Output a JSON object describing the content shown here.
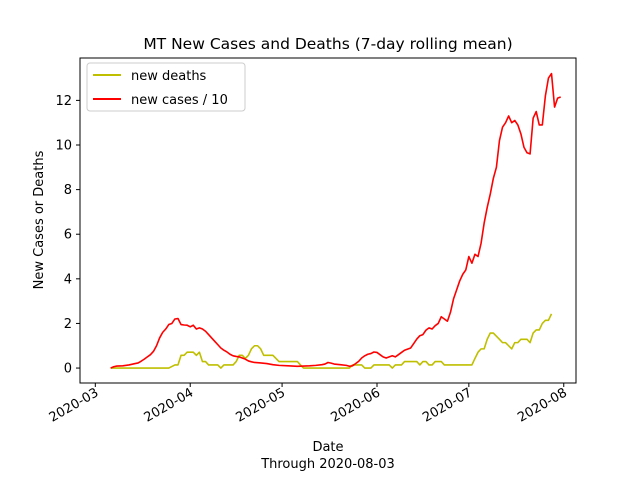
{
  "chart_data": {
    "type": "line",
    "title": "MT New Cases and Deaths (7-day rolling mean)",
    "xlabel": "Date",
    "xlabel_sub": "Through 2020-08-03",
    "ylabel": "New Cases or Deaths",
    "xlim": [
      "2020-02-25",
      "2020-08-05"
    ],
    "ylim": [
      -0.67,
      13.9
    ],
    "x_ticks": [
      "2020-03-01",
      "2020-04-01",
      "2020-05-01",
      "2020-06-01",
      "2020-07-01",
      "2020-08-01"
    ],
    "x_tick_labels": [
      "2020-03",
      "2020-04",
      "2020-05",
      "2020-06",
      "2020-07",
      "2020-08"
    ],
    "y_ticks": [
      0,
      2,
      4,
      6,
      8,
      10,
      12
    ],
    "y_tick_labels": [
      "0",
      "2",
      "4",
      "6",
      "8",
      "10",
      "12"
    ],
    "legend_position": "upper-left",
    "grid": false,
    "series": [
      {
        "name": "new deaths",
        "color": "#bfbf00",
        "points": [
          [
            "2020-03-06",
            0
          ],
          [
            "2020-03-25",
            0
          ],
          [
            "2020-03-27",
            0.14
          ],
          [
            "2020-03-28",
            0.14
          ],
          [
            "2020-03-29",
            0.57
          ],
          [
            "2020-03-30",
            0.57
          ],
          [
            "2020-03-31",
            0.71
          ],
          [
            "2020-04-01",
            0.71
          ],
          [
            "2020-04-02",
            0.71
          ],
          [
            "2020-04-03",
            0.57
          ],
          [
            "2020-04-04",
            0.71
          ],
          [
            "2020-04-05",
            0.29
          ],
          [
            "2020-04-06",
            0.29
          ],
          [
            "2020-04-07",
            0.14
          ],
          [
            "2020-04-09",
            0.14
          ],
          [
            "2020-04-10",
            0.14
          ],
          [
            "2020-04-11",
            0
          ],
          [
            "2020-04-12",
            0.14
          ],
          [
            "2020-04-14",
            0.14
          ],
          [
            "2020-04-15",
            0.14
          ],
          [
            "2020-04-16",
            0.29
          ],
          [
            "2020-04-17",
            0.57
          ],
          [
            "2020-04-18",
            0.57
          ],
          [
            "2020-04-19",
            0.43
          ],
          [
            "2020-04-20",
            0.57
          ],
          [
            "2020-04-21",
            0.86
          ],
          [
            "2020-04-22",
            1.0
          ],
          [
            "2020-04-23",
            1.0
          ],
          [
            "2020-04-24",
            0.86
          ],
          [
            "2020-04-25",
            0.57
          ],
          [
            "2020-04-28",
            0.57
          ],
          [
            "2020-04-30",
            0.29
          ],
          [
            "2020-05-06",
            0.29
          ],
          [
            "2020-05-07",
            0.14
          ],
          [
            "2020-05-08",
            0
          ],
          [
            "2020-05-23",
            0
          ],
          [
            "2020-05-24",
            0.14
          ],
          [
            "2020-05-27",
            0.14
          ],
          [
            "2020-05-28",
            0
          ],
          [
            "2020-05-30",
            0
          ],
          [
            "2020-05-31",
            0.14
          ],
          [
            "2020-06-05",
            0.14
          ],
          [
            "2020-06-06",
            0
          ],
          [
            "2020-06-07",
            0.14
          ],
          [
            "2020-06-09",
            0.14
          ],
          [
            "2020-06-10",
            0.29
          ],
          [
            "2020-06-14",
            0.29
          ],
          [
            "2020-06-15",
            0.14
          ],
          [
            "2020-06-16",
            0.29
          ],
          [
            "2020-06-17",
            0.29
          ],
          [
            "2020-06-18",
            0.14
          ],
          [
            "2020-06-19",
            0.14
          ],
          [
            "2020-06-20",
            0.29
          ],
          [
            "2020-06-22",
            0.29
          ],
          [
            "2020-06-23",
            0.14
          ],
          [
            "2020-07-02",
            0.14
          ],
          [
            "2020-07-03",
            0.43
          ],
          [
            "2020-07-04",
            0.71
          ],
          [
            "2020-07-05",
            0.86
          ],
          [
            "2020-07-06",
            0.86
          ],
          [
            "2020-07-07",
            1.29
          ],
          [
            "2020-07-08",
            1.57
          ],
          [
            "2020-07-09",
            1.57
          ],
          [
            "2020-07-10",
            1.43
          ],
          [
            "2020-07-11",
            1.29
          ],
          [
            "2020-07-12",
            1.14
          ],
          [
            "2020-07-13",
            1.14
          ],
          [
            "2020-07-14",
            1.0
          ],
          [
            "2020-07-15",
            0.86
          ],
          [
            "2020-07-16",
            1.14
          ],
          [
            "2020-07-17",
            1.14
          ],
          [
            "2020-07-18",
            1.29
          ],
          [
            "2020-07-20",
            1.29
          ],
          [
            "2020-07-21",
            1.14
          ],
          [
            "2020-07-22",
            1.57
          ],
          [
            "2020-07-23",
            1.71
          ],
          [
            "2020-07-24",
            1.71
          ],
          [
            "2020-07-25",
            2.0
          ],
          [
            "2020-07-26",
            2.14
          ],
          [
            "2020-07-27",
            2.14
          ],
          [
            "2020-07-28",
            2.43
          ]
        ]
      },
      {
        "name": "new cases / 10",
        "color": "#ff0000",
        "points": [
          [
            "2020-03-06",
            0
          ],
          [
            "2020-03-07",
            0.06
          ],
          [
            "2020-03-08",
            0.09
          ],
          [
            "2020-03-10",
            0.1
          ],
          [
            "2020-03-12",
            0.14
          ],
          [
            "2020-03-14",
            0.2
          ],
          [
            "2020-03-15",
            0.23
          ],
          [
            "2020-03-16",
            0.31
          ],
          [
            "2020-03-17",
            0.4
          ],
          [
            "2020-03-18",
            0.5
          ],
          [
            "2020-03-19",
            0.6
          ],
          [
            "2020-03-20",
            0.75
          ],
          [
            "2020-03-21",
            1.0
          ],
          [
            "2020-03-22",
            1.35
          ],
          [
            "2020-03-23",
            1.6
          ],
          [
            "2020-03-24",
            1.75
          ],
          [
            "2020-03-25",
            1.95
          ],
          [
            "2020-03-26",
            2.0
          ],
          [
            "2020-03-27",
            2.2
          ],
          [
            "2020-03-28",
            2.22
          ],
          [
            "2020-03-29",
            1.95
          ],
          [
            "2020-03-30",
            1.93
          ],
          [
            "2020-03-31",
            1.92
          ],
          [
            "2020-04-01",
            1.85
          ],
          [
            "2020-04-02",
            1.92
          ],
          [
            "2020-04-03",
            1.75
          ],
          [
            "2020-04-04",
            1.8
          ],
          [
            "2020-04-05",
            1.75
          ],
          [
            "2020-04-06",
            1.65
          ],
          [
            "2020-04-07",
            1.5
          ],
          [
            "2020-04-08",
            1.35
          ],
          [
            "2020-04-09",
            1.2
          ],
          [
            "2020-04-10",
            1.05
          ],
          [
            "2020-04-11",
            0.9
          ],
          [
            "2020-04-12",
            0.8
          ],
          [
            "2020-04-13",
            0.72
          ],
          [
            "2020-04-14",
            0.62
          ],
          [
            "2020-04-15",
            0.55
          ],
          [
            "2020-04-16",
            0.52
          ],
          [
            "2020-04-17",
            0.5
          ],
          [
            "2020-04-18",
            0.45
          ],
          [
            "2020-04-19",
            0.4
          ],
          [
            "2020-04-20",
            0.32
          ],
          [
            "2020-04-21",
            0.28
          ],
          [
            "2020-04-22",
            0.25
          ],
          [
            "2020-04-24",
            0.23
          ],
          [
            "2020-04-26",
            0.2
          ],
          [
            "2020-04-28",
            0.15
          ],
          [
            "2020-04-30",
            0.12
          ],
          [
            "2020-05-03",
            0.1
          ],
          [
            "2020-05-06",
            0.08
          ],
          [
            "2020-05-10",
            0.1
          ],
          [
            "2020-05-12",
            0.12
          ],
          [
            "2020-05-14",
            0.15
          ],
          [
            "2020-05-15",
            0.18
          ],
          [
            "2020-05-16",
            0.25
          ],
          [
            "2020-05-17",
            0.22
          ],
          [
            "2020-05-18",
            0.18
          ],
          [
            "2020-05-20",
            0.15
          ],
          [
            "2020-05-22",
            0.12
          ],
          [
            "2020-05-23",
            0.08
          ],
          [
            "2020-05-24",
            0.1
          ],
          [
            "2020-05-25",
            0.2
          ],
          [
            "2020-05-26",
            0.3
          ],
          [
            "2020-05-27",
            0.45
          ],
          [
            "2020-05-28",
            0.55
          ],
          [
            "2020-05-29",
            0.62
          ],
          [
            "2020-05-30",
            0.65
          ],
          [
            "2020-05-31",
            0.72
          ],
          [
            "2020-06-01",
            0.7
          ],
          [
            "2020-06-02",
            0.6
          ],
          [
            "2020-06-03",
            0.5
          ],
          [
            "2020-06-04",
            0.45
          ],
          [
            "2020-06-05",
            0.5
          ],
          [
            "2020-06-06",
            0.55
          ],
          [
            "2020-06-07",
            0.5
          ],
          [
            "2020-06-08",
            0.6
          ],
          [
            "2020-06-09",
            0.7
          ],
          [
            "2020-06-10",
            0.8
          ],
          [
            "2020-06-11",
            0.85
          ],
          [
            "2020-06-12",
            0.9
          ],
          [
            "2020-06-13",
            1.1
          ],
          [
            "2020-06-14",
            1.3
          ],
          [
            "2020-06-15",
            1.45
          ],
          [
            "2020-06-16",
            1.5
          ],
          [
            "2020-06-17",
            1.7
          ],
          [
            "2020-06-18",
            1.8
          ],
          [
            "2020-06-19",
            1.75
          ],
          [
            "2020-06-20",
            1.9
          ],
          [
            "2020-06-21",
            2.0
          ],
          [
            "2020-06-22",
            2.3
          ],
          [
            "2020-06-23",
            2.2
          ],
          [
            "2020-06-24",
            2.1
          ],
          [
            "2020-06-25",
            2.5
          ],
          [
            "2020-06-26",
            3.1
          ],
          [
            "2020-06-27",
            3.5
          ],
          [
            "2020-06-28",
            3.9
          ],
          [
            "2020-06-29",
            4.2
          ],
          [
            "2020-06-30",
            4.4
          ],
          [
            "2020-07-01",
            5.0
          ],
          [
            "2020-07-02",
            4.7
          ],
          [
            "2020-07-03",
            5.1
          ],
          [
            "2020-07-04",
            5.0
          ],
          [
            "2020-07-05",
            5.6
          ],
          [
            "2020-07-06",
            6.5
          ],
          [
            "2020-07-07",
            7.2
          ],
          [
            "2020-07-08",
            7.8
          ],
          [
            "2020-07-09",
            8.5
          ],
          [
            "2020-07-10",
            9.0
          ],
          [
            "2020-07-11",
            10.2
          ],
          [
            "2020-07-12",
            10.8
          ],
          [
            "2020-07-13",
            11.0
          ],
          [
            "2020-07-14",
            11.3
          ],
          [
            "2020-07-15",
            11.0
          ],
          [
            "2020-07-16",
            11.1
          ],
          [
            "2020-07-17",
            10.9
          ],
          [
            "2020-07-18",
            10.5
          ],
          [
            "2020-07-19",
            9.9
          ],
          [
            "2020-07-20",
            9.65
          ],
          [
            "2020-07-21",
            9.6
          ],
          [
            "2020-07-22",
            11.2
          ],
          [
            "2020-07-23",
            11.5
          ],
          [
            "2020-07-24",
            10.9
          ],
          [
            "2020-07-25",
            10.9
          ],
          [
            "2020-07-26",
            12.2
          ],
          [
            "2020-07-27",
            13.0
          ],
          [
            "2020-07-28",
            13.2
          ],
          [
            "2020-07-29",
            11.7
          ],
          [
            "2020-07-30",
            12.1
          ],
          [
            "2020-07-31",
            12.15
          ]
        ]
      }
    ]
  }
}
